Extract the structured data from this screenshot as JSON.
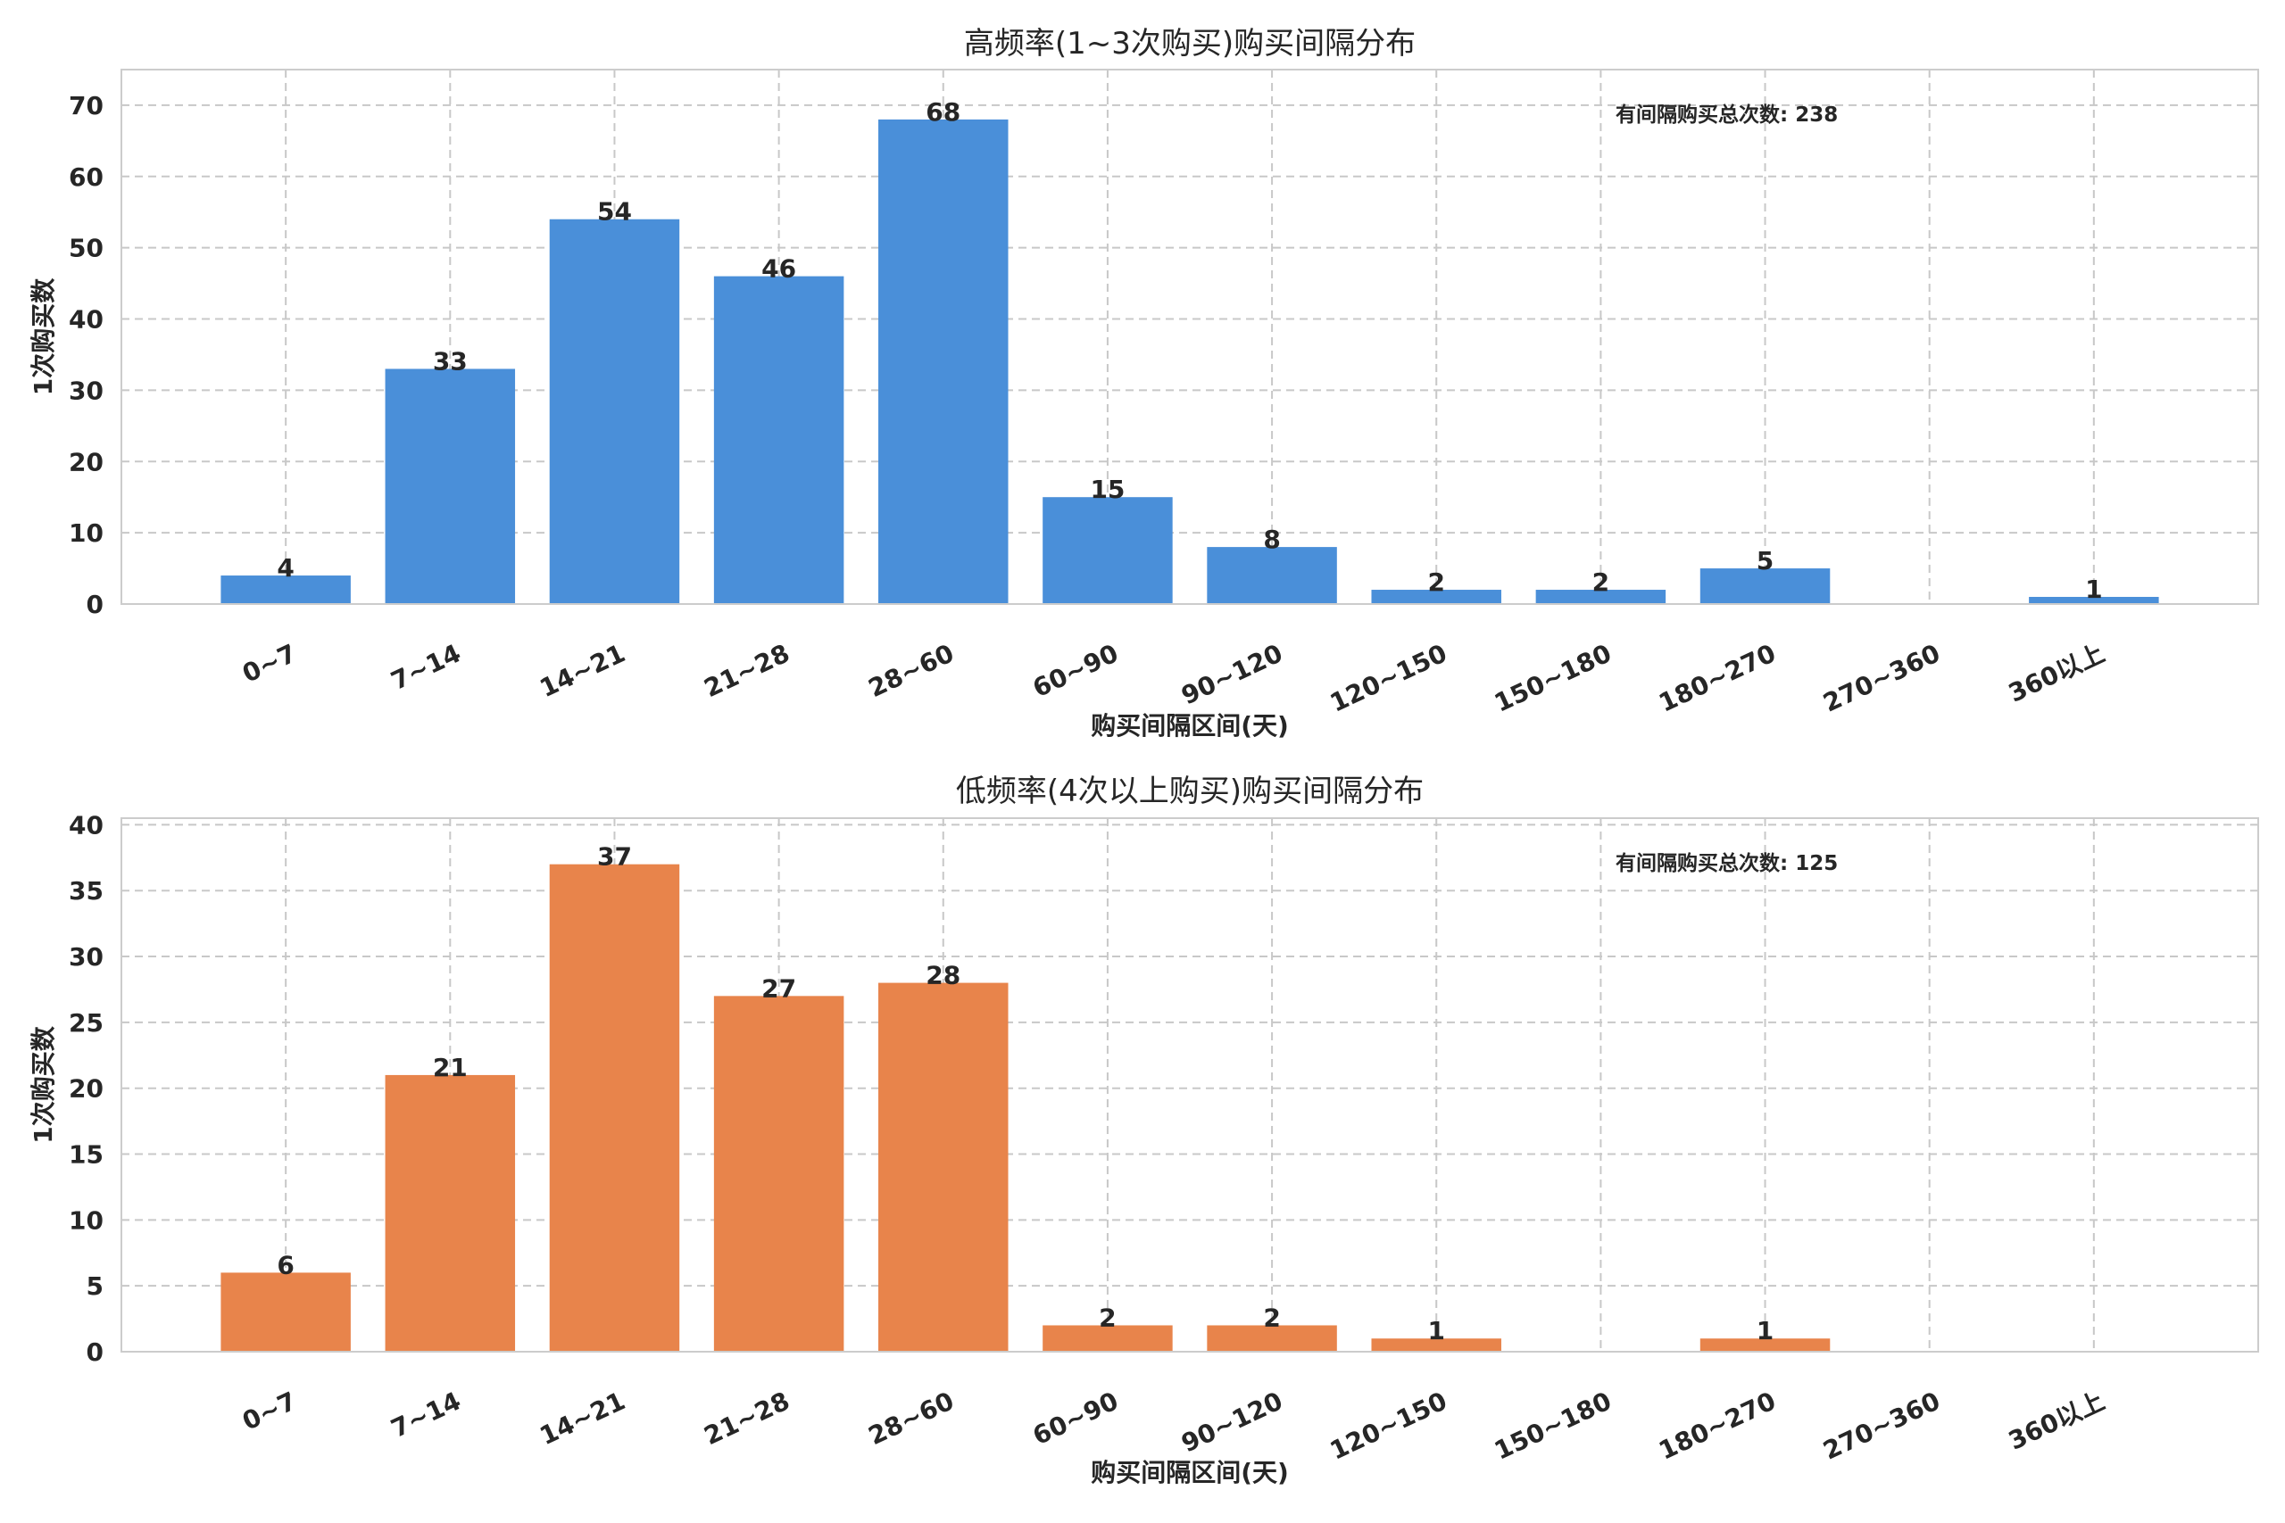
{
  "chart_data": [
    {
      "type": "bar",
      "title": "高频率(1~3次购买)购买间隔分布",
      "xlabel": "购买间隔区间(天)",
      "ylabel": "1次购买数",
      "categories": [
        "0~7",
        "7~14",
        "14~21",
        "21~28",
        "28~60",
        "60~90",
        "90~120",
        "120~150",
        "150~180",
        "180~270",
        "270~360",
        "360以上"
      ],
      "values": [
        4,
        33,
        54,
        46,
        68,
        15,
        8,
        2,
        2,
        5,
        0,
        1
      ],
      "value_labels": [
        "4",
        "33",
        "54",
        "46",
        "68",
        "15",
        "8",
        "2",
        "2",
        "5",
        "",
        "1"
      ],
      "ylim": [
        0,
        75
      ],
      "yticks": [
        0,
        10,
        20,
        30,
        40,
        50,
        60,
        70
      ],
      "annotation": "有间隔购买总次数: 238",
      "color": "#4a8fd9",
      "grid": true
    },
    {
      "type": "bar",
      "title": "低频率(4次以上购买)购买间隔分布",
      "xlabel": "购买间隔区间(天)",
      "ylabel": "1次购买数",
      "categories": [
        "0~7",
        "7~14",
        "14~21",
        "21~28",
        "28~60",
        "60~90",
        "90~120",
        "120~150",
        "150~180",
        "180~270",
        "270~360",
        "360以上"
      ],
      "values": [
        6,
        21,
        37,
        27,
        28,
        2,
        2,
        1,
        0,
        1,
        0,
        0
      ],
      "value_labels": [
        "6",
        "21",
        "37",
        "27",
        "28",
        "2",
        "2",
        "1",
        "",
        "1",
        "",
        ""
      ],
      "ylim": [
        0,
        40.5
      ],
      "yticks": [
        0,
        5,
        10,
        15,
        20,
        25,
        30,
        35,
        40
      ],
      "annotation": "有间隔购买总次数: 125",
      "color": "#e8844b",
      "grid": true
    }
  ]
}
